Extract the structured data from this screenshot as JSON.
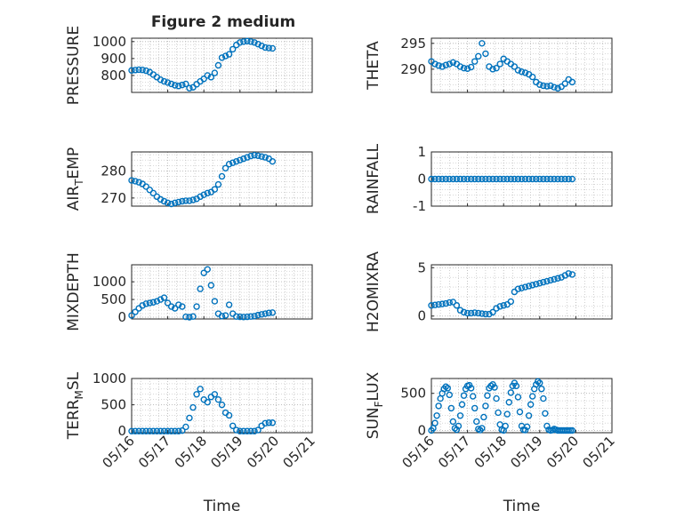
{
  "figure_title": "Figure 2 medium",
  "colors": {
    "marker": "#0072BD",
    "axis": "#262626",
    "grid": "#b0b0b0"
  },
  "chart_data": [
    {
      "type": "scatter",
      "id": "pressure",
      "ylabel": "PRESSURE",
      "title": "Figure 2 medium",
      "xlim": [
        "05/16",
        "05/20"
      ],
      "ylim": [
        700,
        1020
      ],
      "yticks": [
        800,
        900,
        1000
      ],
      "xticks": [
        "05/16",
        "05/17",
        "05/18",
        "05/19",
        "05/20",
        "05/21"
      ],
      "grid": true,
      "x": [
        0,
        0.1,
        0.2,
        0.3,
        0.4,
        0.5,
        0.6,
        0.7,
        0.8,
        0.9,
        1,
        1.1,
        1.2,
        1.3,
        1.4,
        1.5,
        1.6,
        1.7,
        1.8,
        1.9,
        2,
        2.1,
        2.2,
        2.3,
        2.4,
        2.5,
        2.6,
        2.7,
        2.8,
        2.9,
        3,
        3.1,
        3.2,
        3.3,
        3.4,
        3.5,
        3.6,
        3.7,
        3.8,
        3.9
      ],
      "y": [
        830,
        832,
        834,
        833,
        828,
        820,
        805,
        790,
        775,
        765,
        758,
        750,
        742,
        738,
        744,
        750,
        725,
        730,
        748,
        765,
        780,
        800,
        790,
        815,
        860,
        905,
        915,
        925,
        955,
        980,
        995,
        1000,
        1003,
        1000,
        995,
        985,
        975,
        965,
        962,
        960
      ]
    },
    {
      "type": "scatter",
      "id": "theta",
      "ylabel": "THETA",
      "xlim": [
        "05/16",
        "05/20"
      ],
      "ylim": [
        285.5,
        296
      ],
      "yticks": [
        290,
        295
      ],
      "xticks": [
        "05/16",
        "05/17",
        "05/18",
        "05/19",
        "05/20",
        "05/21"
      ],
      "grid": true,
      "x": [
        0,
        0.1,
        0.2,
        0.3,
        0.4,
        0.5,
        0.6,
        0.7,
        0.8,
        0.9,
        1,
        1.1,
        1.2,
        1.3,
        1.4,
        1.5,
        1.6,
        1.7,
        1.8,
        1.9,
        2,
        2.1,
        2.2,
        2.3,
        2.4,
        2.5,
        2.6,
        2.7,
        2.8,
        2.9,
        3,
        3.1,
        3.2,
        3.3,
        3.4,
        3.5,
        3.6,
        3.7,
        3.8,
        3.9
      ],
      "y": [
        291.5,
        291,
        290.7,
        290.5,
        290.8,
        291,
        291.3,
        291,
        290.5,
        290.2,
        290.1,
        290.4,
        291.5,
        292.5,
        295,
        293,
        290.5,
        290,
        290.2,
        291,
        292,
        291.5,
        291,
        290.5,
        289.8,
        289.5,
        289.3,
        289,
        288.5,
        287.5,
        287,
        286.8,
        286.7,
        286.8,
        286.5,
        286.3,
        286.6,
        287.2,
        288,
        287.5
      ]
    },
    {
      "type": "scatter",
      "id": "air_temp",
      "ylabel": "AIR_TEMP",
      "ylabel_display": [
        "AIR",
        "T",
        "EMP"
      ],
      "xlim": [
        "05/16",
        "05/20"
      ],
      "ylim": [
        267,
        287
      ],
      "yticks": [
        270,
        280
      ],
      "xticks": [
        "05/16",
        "05/17",
        "05/18",
        "05/19",
        "05/20",
        "05/21"
      ],
      "grid": true,
      "x": [
        0,
        0.1,
        0.2,
        0.3,
        0.4,
        0.5,
        0.6,
        0.7,
        0.8,
        0.9,
        1,
        1.1,
        1.2,
        1.3,
        1.4,
        1.5,
        1.6,
        1.7,
        1.8,
        1.9,
        2,
        2.1,
        2.2,
        2.3,
        2.4,
        2.5,
        2.6,
        2.7,
        2.8,
        2.9,
        3,
        3.1,
        3.2,
        3.3,
        3.4,
        3.5,
        3.6,
        3.7,
        3.8,
        3.9
      ],
      "y": [
        276.5,
        276.2,
        275.8,
        275.2,
        274.2,
        273,
        271.8,
        270.5,
        269.5,
        268.8,
        268.2,
        267.8,
        268.2,
        268.5,
        268.8,
        269,
        269,
        269.3,
        269.7,
        270.5,
        271.2,
        271.8,
        272.2,
        273.2,
        275,
        278,
        281,
        282.5,
        283,
        283.5,
        284,
        284.5,
        285,
        285.5,
        285.8,
        285.6,
        285.3,
        285,
        284.5,
        283.5
      ]
    },
    {
      "type": "scatter",
      "id": "rainfall",
      "ylabel": "RAINFALL",
      "xlim": [
        "05/16",
        "05/20"
      ],
      "ylim": [
        -1,
        1
      ],
      "yticks": [
        -1,
        0,
        1
      ],
      "xticks": [
        "05/16",
        "05/17",
        "05/18",
        "05/19",
        "05/20",
        "05/21"
      ],
      "grid": true,
      "x": [
        0,
        0.1,
        0.2,
        0.3,
        0.4,
        0.5,
        0.6,
        0.7,
        0.8,
        0.9,
        1,
        1.1,
        1.2,
        1.3,
        1.4,
        1.5,
        1.6,
        1.7,
        1.8,
        1.9,
        2,
        2.1,
        2.2,
        2.3,
        2.4,
        2.5,
        2.6,
        2.7,
        2.8,
        2.9,
        3,
        3.1,
        3.2,
        3.3,
        3.4,
        3.5,
        3.6,
        3.7,
        3.8,
        3.9
      ],
      "y": [
        0,
        0,
        0,
        0,
        0,
        0,
        0,
        0,
        0,
        0,
        0,
        0,
        0,
        0,
        0,
        0,
        0,
        0,
        0,
        0,
        0,
        0,
        0,
        0,
        0,
        0,
        0,
        0,
        0,
        0,
        0,
        0,
        0,
        0,
        0,
        0,
        0,
        0,
        0,
        0
      ]
    },
    {
      "type": "scatter",
      "id": "mixdepth",
      "ylabel": "MIXDEPTH",
      "xlim": [
        "05/16",
        "05/20"
      ],
      "ylim": [
        -50,
        1480
      ],
      "yticks": [
        0,
        500,
        1000
      ],
      "xticks": [
        "05/16",
        "05/17",
        "05/18",
        "05/19",
        "05/20",
        "05/21"
      ],
      "grid": true,
      "x": [
        0,
        0.1,
        0.2,
        0.3,
        0.4,
        0.5,
        0.6,
        0.7,
        0.8,
        0.9,
        1,
        1.1,
        1.2,
        1.3,
        1.4,
        1.5,
        1.6,
        1.7,
        1.8,
        1.9,
        2,
        2.1,
        2.2,
        2.3,
        2.4,
        2.5,
        2.6,
        2.7,
        2.8,
        2.9,
        3,
        3.1,
        3.2,
        3.3,
        3.4,
        3.5,
        3.6,
        3.7,
        3.8,
        3.9
      ],
      "y": [
        50,
        150,
        250,
        330,
        380,
        400,
        420,
        450,
        500,
        550,
        400,
        300,
        250,
        350,
        300,
        10,
        0,
        20,
        300,
        800,
        1250,
        1350,
        900,
        450,
        100,
        30,
        50,
        350,
        100,
        20,
        10,
        5,
        10,
        20,
        30,
        60,
        80,
        100,
        120,
        130
      ]
    },
    {
      "type": "scatter",
      "id": "h2omixra",
      "ylabel": "H2OMIXRA",
      "xlim": [
        "05/16",
        "05/20"
      ],
      "ylim": [
        -0.3,
        5.3
      ],
      "yticks": [
        0,
        5
      ],
      "xticks": [
        "05/16",
        "05/17",
        "05/18",
        "05/19",
        "05/20",
        "05/21"
      ],
      "grid": true,
      "x": [
        0,
        0.1,
        0.2,
        0.3,
        0.4,
        0.5,
        0.6,
        0.7,
        0.8,
        0.9,
        1,
        1.1,
        1.2,
        1.3,
        1.4,
        1.5,
        1.6,
        1.7,
        1.8,
        1.9,
        2,
        2.1,
        2.2,
        2.3,
        2.4,
        2.5,
        2.6,
        2.7,
        2.8,
        2.9,
        3,
        3.1,
        3.2,
        3.3,
        3.4,
        3.5,
        3.6,
        3.7,
        3.8,
        3.9
      ],
      "y": [
        1.1,
        1.15,
        1.2,
        1.25,
        1.3,
        1.4,
        1.45,
        1.1,
        0.6,
        0.4,
        0.3,
        0.3,
        0.35,
        0.3,
        0.25,
        0.2,
        0.2,
        0.4,
        0.8,
        1.0,
        1.1,
        1.2,
        1.5,
        2.5,
        2.8,
        2.9,
        3.0,
        3.1,
        3.2,
        3.3,
        3.4,
        3.5,
        3.6,
        3.7,
        3.8,
        3.9,
        4.0,
        4.2,
        4.4,
        4.3
      ]
    },
    {
      "type": "scatter",
      "id": "terr_msl",
      "ylabel": "TERR_MSL",
      "ylabel_display": [
        "TERR",
        "M",
        "SL"
      ],
      "xlim": [
        "05/16",
        "05/20"
      ],
      "ylim": [
        -30,
        1000
      ],
      "yticks": [
        0,
        500,
        1000
      ],
      "xticks": [
        "05/16",
        "05/17",
        "05/18",
        "05/19",
        "05/20",
        "05/21"
      ],
      "xlabel": "Time",
      "grid": true,
      "x": [
        0,
        0.1,
        0.2,
        0.3,
        0.4,
        0.5,
        0.6,
        0.7,
        0.8,
        0.9,
        1,
        1.1,
        1.2,
        1.3,
        1.4,
        1.5,
        1.6,
        1.7,
        1.8,
        1.9,
        2,
        2.1,
        2.2,
        2.3,
        2.4,
        2.5,
        2.6,
        2.7,
        2.8,
        2.9,
        3,
        3.1,
        3.2,
        3.3,
        3.4,
        3.5,
        3.6,
        3.7,
        3.8,
        3.9
      ],
      "y": [
        0,
        0,
        0,
        0,
        0,
        0,
        0,
        0,
        0,
        0,
        0,
        0,
        0,
        0,
        10,
        80,
        250,
        450,
        700,
        800,
        600,
        550,
        650,
        700,
        600,
        500,
        350,
        300,
        100,
        20,
        0,
        0,
        0,
        0,
        0,
        20,
        100,
        150,
        160,
        160
      ]
    },
    {
      "type": "scatter",
      "id": "sun_flux",
      "ylabel": "SUN_FLUX",
      "ylabel_display": [
        "SUN",
        "F",
        "LUX"
      ],
      "xlim": [
        "05/16",
        "05/20"
      ],
      "ylim": [
        -30,
        700
      ],
      "yticks": [
        0,
        500
      ],
      "xticks": [
        "05/16",
        "05/17",
        "05/18",
        "05/19",
        "05/20",
        "05/21"
      ],
      "xlabel": "Time",
      "grid": true,
      "x": [
        0,
        0.05,
        0.1,
        0.15,
        0.2,
        0.25,
        0.3,
        0.35,
        0.4,
        0.45,
        0.5,
        0.55,
        0.6,
        0.65,
        0.7,
        0.75,
        0.8,
        0.85,
        0.9,
        0.95,
        1,
        1.05,
        1.1,
        1.15,
        1.2,
        1.25,
        1.3,
        1.35,
        1.4,
        1.45,
        1.5,
        1.55,
        1.6,
        1.65,
        1.7,
        1.75,
        1.8,
        1.85,
        1.9,
        1.95,
        2,
        2.05,
        2.1,
        2.15,
        2.2,
        2.25,
        2.3,
        2.35,
        2.4,
        2.45,
        2.5,
        2.55,
        2.6,
        2.65,
        2.7,
        2.75,
        2.8,
        2.85,
        2.9,
        2.95,
        3,
        3.05,
        3.1,
        3.15,
        3.2,
        3.25,
        3.3,
        3.35,
        3.4,
        3.45,
        3.5,
        3.55,
        3.6,
        3.65,
        3.7,
        3.75,
        3.8,
        3.85,
        3.9
      ],
      "y": [
        0,
        30,
        100,
        200,
        330,
        430,
        500,
        560,
        590,
        570,
        480,
        300,
        120,
        30,
        10,
        60,
        200,
        350,
        470,
        560,
        600,
        610,
        570,
        460,
        300,
        120,
        20,
        5,
        30,
        180,
        330,
        470,
        570,
        600,
        620,
        580,
        430,
        240,
        80,
        10,
        0,
        60,
        220,
        380,
        510,
        600,
        640,
        600,
        450,
        250,
        60,
        10,
        5,
        50,
        200,
        350,
        460,
        560,
        620,
        660,
        640,
        560,
        430,
        230,
        60,
        10,
        0,
        5,
        20,
        10,
        0,
        0,
        0,
        0,
        0,
        0,
        0,
        0,
        0
      ]
    }
  ]
}
